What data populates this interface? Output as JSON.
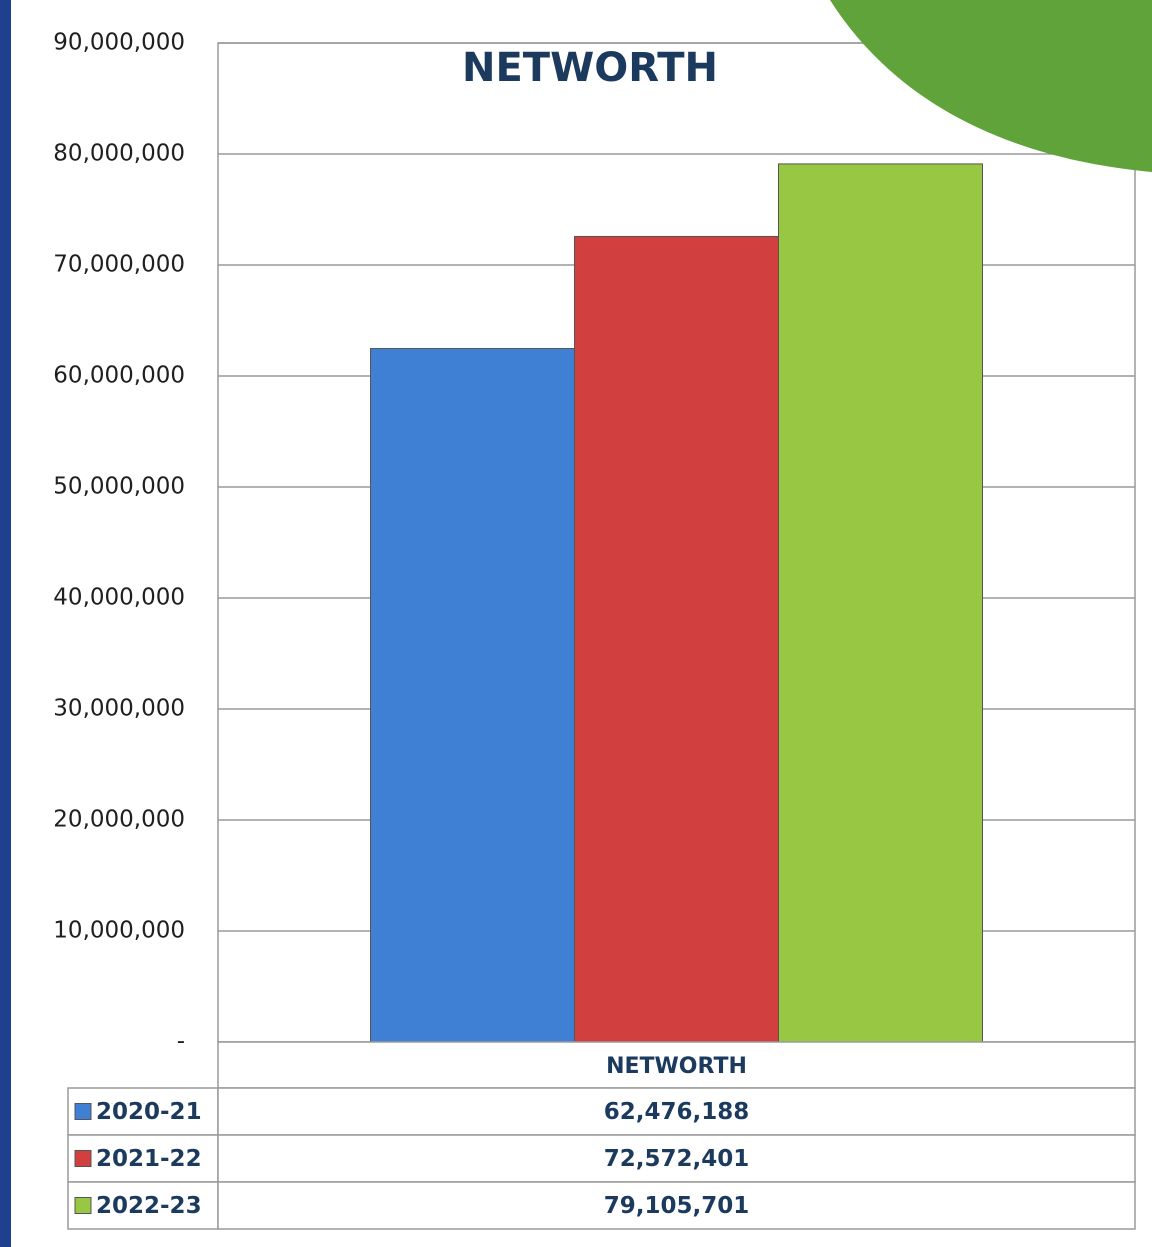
{
  "chart_data": {
    "type": "bar",
    "title": "NETWORTH",
    "categories": [
      "NETWORTH"
    ],
    "series": [
      {
        "name": "2020-21",
        "color": "#3f7fd4",
        "values": [
          62476188
        ],
        "value_labels": [
          "62,476,188"
        ]
      },
      {
        "name": "2021-22",
        "color": "#d23f3f",
        "values": [
          72572401
        ],
        "value_labels": [
          "72,572,401"
        ]
      },
      {
        "name": "2022-23",
        "color": "#98c843",
        "values": [
          79105701
        ],
        "value_labels": [
          "79,105,701"
        ]
      }
    ],
    "ylim": [
      0,
      90000000
    ],
    "yticks": [
      {
        "value": 0,
        "label": "-"
      },
      {
        "value": 10000000,
        "label": "10,000,000"
      },
      {
        "value": 20000000,
        "label": "20,000,000"
      },
      {
        "value": 30000000,
        "label": "30,000,000"
      },
      {
        "value": 40000000,
        "label": "40,000,000"
      },
      {
        "value": 50000000,
        "label": "50,000,000"
      },
      {
        "value": 60000000,
        "label": "60,000,000"
      },
      {
        "value": 70000000,
        "label": "70,000,000"
      },
      {
        "value": 80000000,
        "label": "80,000,000"
      },
      {
        "value": 90000000,
        "label": "90,000,000"
      }
    ],
    "grid": true
  }
}
